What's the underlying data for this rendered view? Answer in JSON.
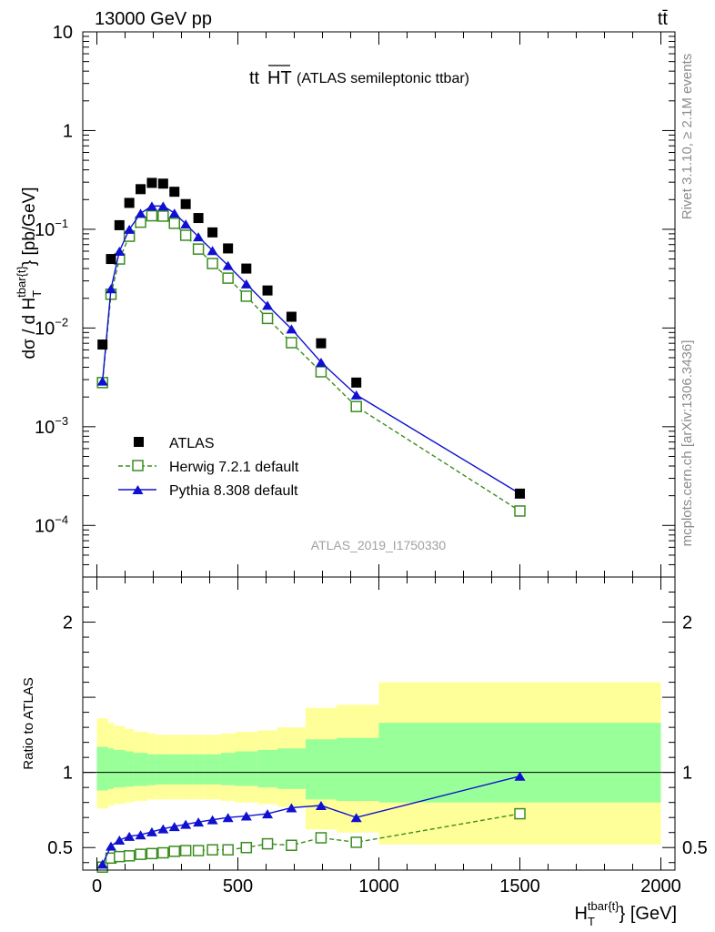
{
  "header": {
    "left": "13000 GeV pp",
    "right": "tt̄"
  },
  "side_texts": {
    "rivet": "Rivet 3.1.10, ≥ 2.1M events",
    "mcplots": "mcplots.cern.ch [arXiv:1306.3436]"
  },
  "colors": {
    "data": "#000000",
    "herwig": "#3a8d1f",
    "pythia": "#1010d0",
    "band_outer": "#ffff99",
    "band_inner": "#99ff99"
  },
  "chart_data": [
    {
      "type": "scatter",
      "panel": "main",
      "title": "tt̅H̅T̅",
      "title_main": "tt",
      "title_over": "HT",
      "subtitle": "(ATLAS semileptonic ttbar)",
      "analysis_label": "ATLAS_2019_I1750330",
      "ylabel": "dσ / d H_T^{tbar{t}} [pb/GeV]",
      "ylabel_parts": {
        "a": "dσ / d H",
        "sub": "T",
        "sup": "tbar{t}",
        "b": "} [pb/GeV]"
      },
      "yscale": "log",
      "ylim": [
        3e-05,
        10
      ],
      "yticks": [
        {
          "value": 10,
          "label": "10",
          "exp": ""
        },
        {
          "value": 1,
          "label": "1",
          "exp": ""
        },
        {
          "value": 0.1,
          "label": "10",
          "exp": "−1"
        },
        {
          "value": 0.01,
          "label": "10",
          "exp": "−2"
        },
        {
          "value": 0.001,
          "label": "10",
          "exp": "−3"
        },
        {
          "value": 0.0001,
          "label": "10",
          "exp": "−4"
        }
      ],
      "xlim": [
        -50,
        2050
      ],
      "legend_position": "lower-left",
      "series": [
        {
          "name": "ATLAS",
          "marker": "filled-square",
          "x": [
            20,
            50,
            80,
            115,
            155,
            195,
            235,
            275,
            315,
            360,
            410,
            465,
            530,
            605,
            690,
            795,
            920,
            1500
          ],
          "y": [
            0.0068,
            0.05,
            0.11,
            0.185,
            0.255,
            0.295,
            0.29,
            0.24,
            0.18,
            0.13,
            0.093,
            0.064,
            0.04,
            0.024,
            0.013,
            0.007,
            0.0028,
            0.00021
          ]
        },
        {
          "name": "Herwig 7.2.1 default",
          "marker": "open-square",
          "line": "dashed",
          "x": [
            20,
            50,
            80,
            115,
            155,
            195,
            235,
            275,
            315,
            360,
            410,
            465,
            530,
            605,
            690,
            795,
            920,
            1500
          ],
          "y": [
            0.0028,
            0.022,
            0.05,
            0.085,
            0.118,
            0.137,
            0.136,
            0.115,
            0.087,
            0.063,
            0.045,
            0.032,
            0.021,
            0.0125,
            0.0071,
            0.0036,
            0.0016,
            0.00014
          ]
        },
        {
          "name": "Pythia 8.308 default",
          "marker": "filled-triangle",
          "line": "solid",
          "x": [
            20,
            50,
            80,
            115,
            155,
            195,
            235,
            275,
            315,
            360,
            410,
            465,
            530,
            605,
            690,
            795,
            920,
            1500
          ],
          "y": [
            0.0029,
            0.025,
            0.06,
            0.1,
            0.145,
            0.172,
            0.172,
            0.146,
            0.113,
            0.084,
            0.061,
            0.043,
            0.028,
            0.017,
            0.0098,
            0.0045,
            0.0021,
            0.00021
          ]
        }
      ]
    },
    {
      "type": "line",
      "panel": "ratio",
      "ylabel": "Ratio to ATLAS",
      "ylim": [
        0.35,
        2.3
      ],
      "yticks": [
        {
          "value": 0.5,
          "label": "0.5"
        },
        {
          "value": 1,
          "label": "1"
        },
        {
          "value": 2,
          "label": "2"
        }
      ],
      "xlim": [
        -50,
        2050
      ],
      "xticks": [
        0,
        500,
        1000,
        1500,
        2000
      ],
      "xlabel_parts": {
        "a": "H",
        "sub": "T",
        "sup": "tbar{t}",
        "b": "} [GeV]"
      },
      "bands": {
        "edges": [
          0,
          40,
          60,
          100,
          130,
          180,
          210,
          260,
          290,
          340,
          380,
          440,
          490,
          570,
          640,
          740,
          850,
          1000,
          2000
        ],
        "outer_low": [
          0.76,
          0.78,
          0.79,
          0.8,
          0.81,
          0.82,
          0.82,
          0.82,
          0.82,
          0.82,
          0.82,
          0.81,
          0.8,
          0.79,
          0.77,
          0.62,
          0.6,
          0.52
        ],
        "outer_high": [
          1.36,
          1.33,
          1.31,
          1.29,
          1.27,
          1.26,
          1.25,
          1.25,
          1.25,
          1.25,
          1.25,
          1.26,
          1.27,
          1.28,
          1.3,
          1.43,
          1.45,
          1.6
        ],
        "inner_low": [
          0.88,
          0.89,
          0.9,
          0.905,
          0.91,
          0.915,
          0.92,
          0.92,
          0.92,
          0.92,
          0.92,
          0.915,
          0.91,
          0.9,
          0.89,
          0.82,
          0.81,
          0.8
        ],
        "inner_high": [
          1.17,
          1.16,
          1.15,
          1.14,
          1.13,
          1.12,
          1.12,
          1.12,
          1.12,
          1.12,
          1.12,
          1.13,
          1.14,
          1.15,
          1.16,
          1.22,
          1.23,
          1.33
        ]
      },
      "series": [
        {
          "name": "Herwig 7.2.1 default",
          "marker": "open-square",
          "line": "dashed",
          "x": [
            20,
            50,
            80,
            115,
            155,
            195,
            235,
            275,
            315,
            360,
            410,
            465,
            530,
            605,
            690,
            795,
            920,
            1500
          ],
          "y": [
            0.37,
            0.43,
            0.44,
            0.445,
            0.455,
            0.46,
            0.465,
            0.475,
            0.48,
            0.48,
            0.485,
            0.485,
            0.5,
            0.525,
            0.515,
            0.565,
            0.535,
            0.725
          ]
        },
        {
          "name": "Pythia 8.308 default",
          "marker": "filled-triangle",
          "line": "solid",
          "x": [
            20,
            50,
            80,
            115,
            155,
            195,
            235,
            275,
            315,
            360,
            410,
            465,
            530,
            605,
            690,
            795,
            920,
            1500
          ],
          "y": [
            0.39,
            0.51,
            0.55,
            0.575,
            0.585,
            0.605,
            0.625,
            0.64,
            0.655,
            0.67,
            0.685,
            0.7,
            0.71,
            0.725,
            0.765,
            0.78,
            0.7,
            0.975
          ]
        }
      ]
    }
  ]
}
